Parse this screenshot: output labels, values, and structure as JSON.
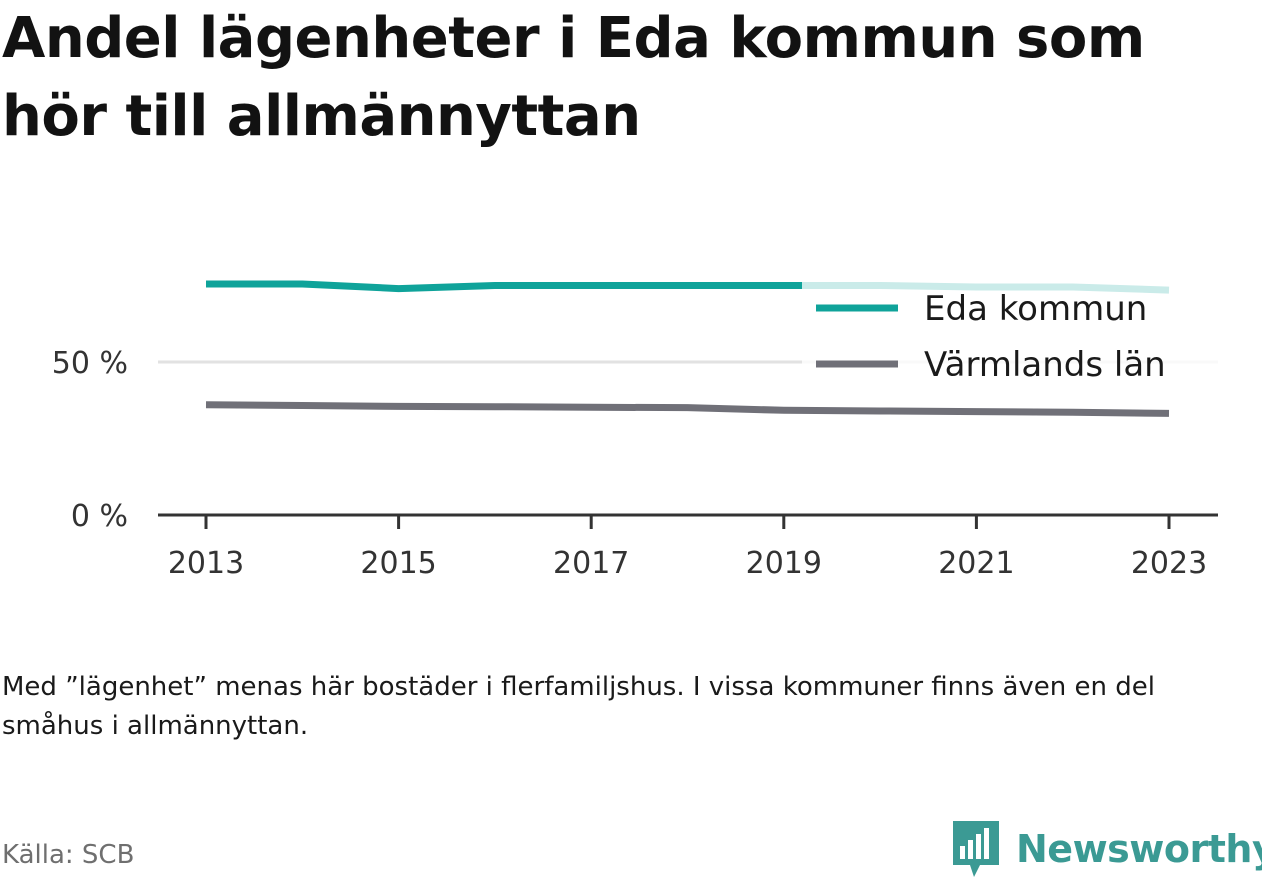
{
  "title": "Andel lägenheter i Eda kommun som hör till allmännyttan",
  "note": "Med ”lägenhet” menas här bostäder i flerfamiljshus. I vissa kommuner finns även en del småhus i allmännyttan.",
  "source": "Källa: SCB",
  "brand": {
    "name": "Newsworthy",
    "icon": "newsworthy-logo-icon",
    "color": "#3b9a94"
  },
  "chart_data": {
    "type": "line",
    "title": "Andel lägenheter i Eda kommun som hör till allmännyttan",
    "xlabel": "",
    "ylabel": "",
    "x": [
      2013,
      2014,
      2015,
      2016,
      2017,
      2018,
      2019,
      2020,
      2021,
      2022,
      2023
    ],
    "xticks": [
      "2013",
      "2015",
      "2017",
      "2019",
      "2021",
      "2023"
    ],
    "yticks": [
      {
        "value": 0,
        "label": "0 %"
      },
      {
        "value": 50,
        "label": "50 %"
      }
    ],
    "ylim": [
      0,
      82
    ],
    "grid": "horizontal",
    "legend_position": "top-right",
    "series": [
      {
        "name": "Eda kommun",
        "color": "#0fa39a",
        "values": [
          75.5,
          75.5,
          74.0,
          75.0,
          75.0,
          75.0,
          75.0,
          75.0,
          74.5,
          74.5,
          73.5
        ]
      },
      {
        "name": "Värmlands län",
        "color": "#707078",
        "values": [
          36.0,
          35.8,
          35.5,
          35.4,
          35.2,
          35.1,
          34.2,
          34.0,
          33.8,
          33.6,
          33.2
        ]
      }
    ]
  }
}
